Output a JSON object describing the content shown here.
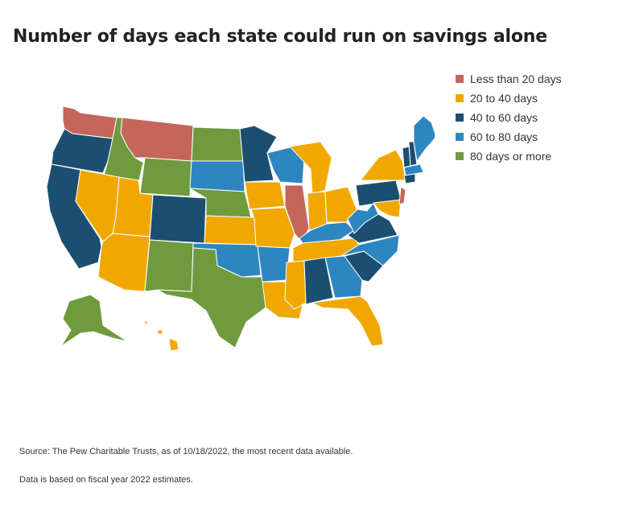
{
  "title": "Number of days each state could run on savings alone",
  "legend": {
    "items": [
      {
        "label": "Less than 20 days",
        "color": "#c4665a"
      },
      {
        "label": "20 to 40 days",
        "color": "#f0a800"
      },
      {
        "label": "40 to 60 days",
        "color": "#1b4f72"
      },
      {
        "label": "60 to 80 days",
        "color": "#2e86c1"
      },
      {
        "label": "80 days or more",
        "color": "#6f9a3e"
      }
    ]
  },
  "footer": {
    "source": "Source: The Pew Charitable Trusts, as of 10/18/2022, the most recent data available.",
    "note": "Data is based on fiscal year 2022 estimates."
  }
}
